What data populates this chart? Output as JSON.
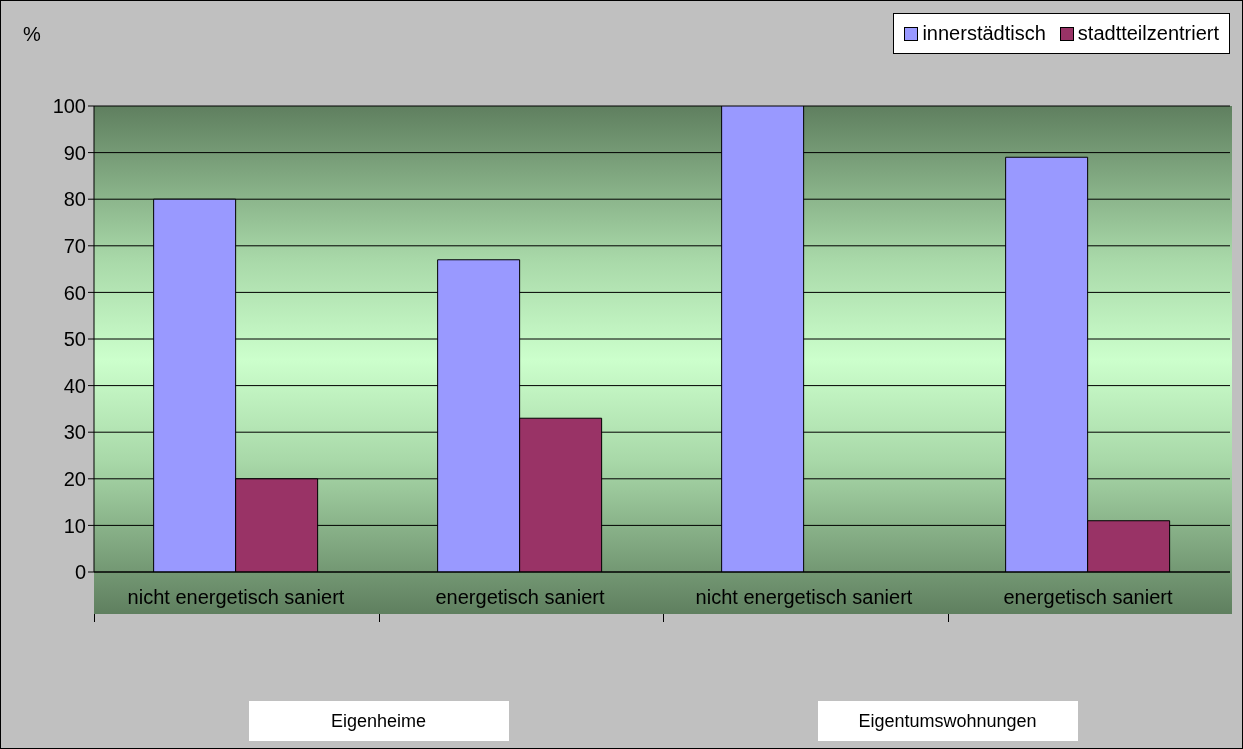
{
  "chart_data": {
    "type": "bar",
    "ylabel": "%",
    "categories": [
      "nicht energetisch saniert",
      "energetisch saniert",
      "nicht energetisch saniert",
      "energetisch saniert"
    ],
    "series": [
      {
        "name": "innerstädtisch",
        "color": "#9999ff",
        "values": [
          80,
          67,
          100,
          89
        ]
      },
      {
        "name": "stadtteilzentriert",
        "color": "#993366",
        "values": [
          20,
          33,
          0,
          11
        ]
      }
    ],
    "ylim": [
      0,
      100
    ],
    "yticks": [
      0,
      10,
      20,
      30,
      40,
      50,
      60,
      70,
      80,
      90,
      100
    ],
    "grid": "y",
    "legend": "top right",
    "annotations": [
      "Eigenheime",
      "Eigentumswohnungen"
    ]
  }
}
